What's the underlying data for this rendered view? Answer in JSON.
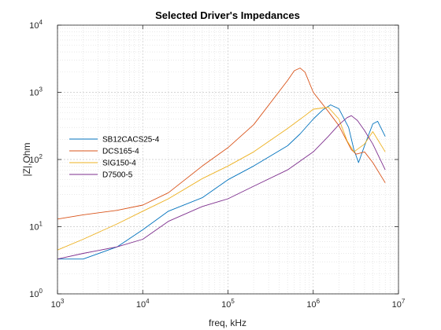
{
  "chart_data": {
    "type": "line",
    "title": "Selected Driver's Impedances",
    "xlabel": "freq, kHz",
    "ylabel": "|Z|,Ohm",
    "xscale": "log",
    "yscale": "log",
    "xlim": [
      1000,
      10000000
    ],
    "ylim": [
      1,
      10000
    ],
    "grid": true,
    "minor_grid": true,
    "legend_position": "middle-left",
    "x_ticks": [
      {
        "value": 1000,
        "base": "10",
        "exp": "3"
      },
      {
        "value": 10000,
        "base": "10",
        "exp": "4"
      },
      {
        "value": 100000,
        "base": "10",
        "exp": "5"
      },
      {
        "value": 1000000,
        "base": "10",
        "exp": "6"
      },
      {
        "value": 10000000,
        "base": "10",
        "exp": "7"
      }
    ],
    "y_ticks": [
      {
        "value": 1,
        "base": "10",
        "exp": "0"
      },
      {
        "value": 10,
        "base": "10",
        "exp": "1"
      },
      {
        "value": 100,
        "base": "10",
        "exp": "2"
      },
      {
        "value": 1000,
        "base": "10",
        "exp": "3"
      },
      {
        "value": 10000,
        "base": "10",
        "exp": "4"
      }
    ],
    "series": [
      {
        "name": "SB12CACS25-4",
        "color": "#0072BD",
        "x": [
          1000,
          2000,
          5000,
          10000,
          20000,
          50000,
          100000,
          200000,
          500000,
          700000,
          1000000,
          1300000,
          1600000,
          2000000,
          2600000,
          3000000,
          3400000,
          4000000,
          5000000,
          5700000,
          7000000
        ],
        "y": [
          3.3,
          3.3,
          5,
          9,
          17,
          27,
          50,
          80,
          160,
          240,
          400,
          550,
          650,
          570,
          300,
          140,
          90,
          160,
          340,
          370,
          220
        ]
      },
      {
        "name": "DCS165-4",
        "color": "#D95319",
        "x": [
          1000,
          2000,
          5000,
          10000,
          20000,
          50000,
          100000,
          200000,
          500000,
          600000,
          700000,
          800000,
          1000000,
          1500000,
          2000000,
          2800000,
          3200000,
          4000000,
          5000000,
          7000000
        ],
        "y": [
          13,
          15,
          17.5,
          21,
          32,
          80,
          150,
          330,
          1500,
          2100,
          2300,
          2000,
          1000,
          520,
          320,
          140,
          120,
          130,
          90,
          45
        ]
      },
      {
        "name": "SIG150-4",
        "color": "#EDB120",
        "x": [
          1000,
          2000,
          5000,
          10000,
          20000,
          50000,
          100000,
          200000,
          500000,
          800000,
          1000000,
          1500000,
          2000000,
          2500000,
          3000000,
          4000000,
          5000000,
          7000000
        ],
        "y": [
          4.5,
          6.5,
          11,
          17,
          26,
          52,
          80,
          130,
          290,
          450,
          560,
          600,
          400,
          190,
          130,
          170,
          260,
          130
        ]
      },
      {
        "name": "D7500-5",
        "color": "#7E2F8E",
        "x": [
          1000,
          2000,
          5000,
          10000,
          20000,
          50000,
          100000,
          200000,
          500000,
          1000000,
          1500000,
          2000000,
          2500000,
          2800000,
          3300000,
          4000000,
          5000000,
          7000000
        ],
        "y": [
          3.3,
          4,
          5,
          6.5,
          12,
          20,
          26,
          40,
          70,
          130,
          220,
          330,
          420,
          450,
          380,
          270,
          170,
          70
        ]
      }
    ]
  }
}
